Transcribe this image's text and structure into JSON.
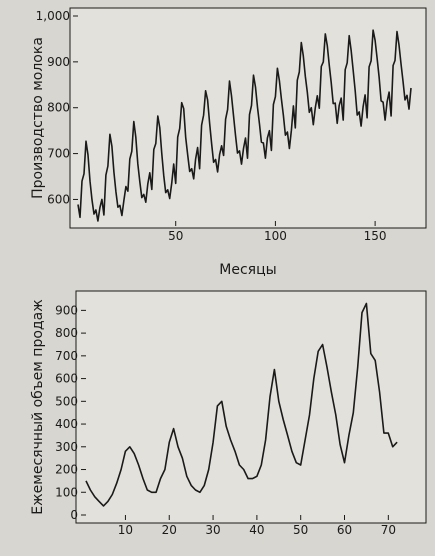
{
  "chart_data": [
    {
      "type": "line",
      "xlabel": "Месяцы",
      "ylabel": "Производство молока",
      "xlim": [
        1,
        168
      ],
      "ylim": [
        553,
        1000
      ],
      "xticks": [
        50,
        100,
        150
      ],
      "yticks": [
        600,
        700,
        800,
        900,
        1000
      ],
      "ytick_labels": [
        "600",
        "700",
        "800",
        "900",
        "1,000"
      ],
      "grid": false,
      "series": [
        {
          "values": [
            589,
            561,
            640,
            656,
            727,
            697,
            640,
            599,
            568,
            577,
            553,
            582,
            600,
            566,
            653,
            673,
            742,
            716,
            660,
            617,
            583,
            587,
            565,
            598,
            628,
            618,
            688,
            705,
            770,
            736,
            678,
            639,
            604,
            611,
            594,
            634,
            658,
            622,
            709,
            722,
            782,
            756,
            702,
            653,
            615,
            621,
            602,
            635,
            677,
            635,
            736,
            755,
            811,
            798,
            735,
            697,
            661,
            667,
            645,
            688,
            713,
            667,
            762,
            784,
            837,
            817,
            767,
            722,
            681,
            687,
            660,
            698,
            717,
            696,
            775,
            796,
            858,
            826,
            783,
            740,
            701,
            706,
            677,
            711,
            734,
            690,
            785,
            805,
            871,
            845,
            801,
            764,
            725,
            723,
            690,
            734,
            750,
            707,
            807,
            824,
            886,
            859,
            819,
            783,
            740,
            747,
            711,
            751,
            804,
            756,
            860,
            878,
            942,
            913,
            869,
            834,
            790,
            800,
            763,
            800,
            826,
            799,
            890,
            900,
            961,
            935,
            894,
            855,
            809,
            810,
            766,
            805,
            821,
            773,
            883,
            898,
            957,
            924,
            881,
            837,
            784,
            791,
            760,
            802,
            828,
            778,
            889,
            902,
            969,
            947,
            908,
            867,
            815,
            812,
            773,
            813,
            834,
            782,
            892,
            903,
            966,
            937,
            896,
            858,
            817,
            827,
            797,
            843
          ]
        }
      ]
    },
    {
      "type": "line",
      "xlabel": "",
      "ylabel": "Ежемесячный объем продаж",
      "xlim": [
        1,
        77
      ],
      "ylim": [
        0,
        950
      ],
      "xticks": [
        10,
        20,
        30,
        40,
        50,
        60,
        70
      ],
      "yticks": [
        0,
        100,
        200,
        300,
        400,
        500,
        600,
        700,
        800,
        900
      ],
      "grid": false,
      "series": [
        {
          "values": [
            150,
            110,
            80,
            60,
            40,
            60,
            90,
            140,
            200,
            280,
            300,
            270,
            220,
            160,
            110,
            100,
            100,
            160,
            200,
            320,
            380,
            300,
            250,
            170,
            130,
            110,
            100,
            130,
            200,
            320,
            480,
            500,
            390,
            330,
            280,
            220,
            200,
            160,
            160,
            170,
            220,
            330,
            520,
            640,
            500,
            420,
            350,
            280,
            230,
            220,
            330,
            440,
            600,
            720,
            750,
            650,
            540,
            440,
            310,
            230,
            350,
            450,
            650,
            890,
            930,
            710,
            680,
            540,
            360,
            360,
            300,
            320
          ]
        }
      ]
    }
  ]
}
